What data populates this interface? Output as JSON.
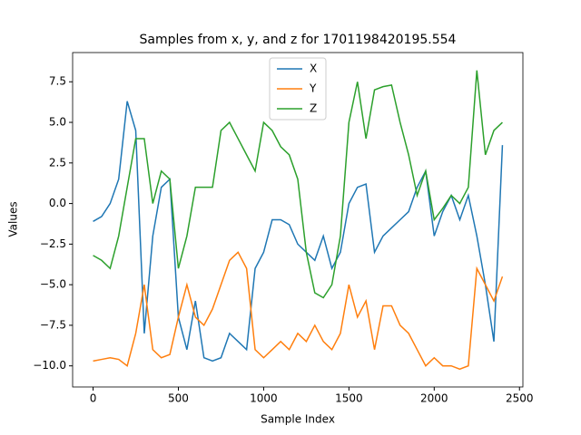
{
  "chart_data": {
    "type": "line",
    "title": "Samples from x, y, and z for 1701198420195.554",
    "x_label": "Sample Index",
    "y_label": "Values",
    "x": [
      0,
      50,
      100,
      150,
      200,
      250,
      300,
      350,
      400,
      450,
      500,
      550,
      600,
      650,
      700,
      750,
      800,
      850,
      900,
      950,
      1000,
      1050,
      1100,
      1150,
      1200,
      1250,
      1300,
      1350,
      1400,
      1450,
      1500,
      1550,
      1600,
      1650,
      1700,
      1750,
      1800,
      1850,
      1900,
      1950,
      2000,
      2050,
      2100,
      2150,
      2200,
      2250,
      2300,
      2350,
      2400
    ],
    "series": [
      {
        "name": "X",
        "color": "#1f77b4",
        "values": [
          -1.1,
          -0.8,
          0,
          1.5,
          6.3,
          4.5,
          -8,
          -2,
          1,
          1.5,
          -7,
          -9,
          -6,
          -9.5,
          -9.7,
          -9.5,
          -8,
          -8.5,
          -9,
          -4,
          -3,
          -1,
          -1,
          -1.3,
          -2.5,
          -3,
          -3.5,
          -2,
          -4,
          -3,
          0,
          1,
          1.2,
          -3,
          -2,
          -1.5,
          -1,
          -0.5,
          1,
          2,
          -2,
          -0.5,
          0.5,
          -1,
          0.5,
          -2,
          -5,
          -8.5,
          3.6
        ]
      },
      {
        "name": "Y",
        "color": "#ff7f0e",
        "values": [
          -9.7,
          -9.6,
          -9.5,
          -9.6,
          -10,
          -8,
          -5,
          -9,
          -9.5,
          -9.3,
          -7,
          -5,
          -7,
          -7.5,
          -6.5,
          -5,
          -3.5,
          -3,
          -4,
          -9,
          -9.5,
          -9,
          -8.5,
          -9,
          -8,
          -8.5,
          -7.5,
          -8.5,
          -9,
          -8,
          -5,
          -7,
          -6,
          -9,
          -6.3,
          -6.3,
          -7.5,
          -8,
          -9,
          -10,
          -9.5,
          -10,
          -10,
          -10.2,
          -10,
          -4,
          -5,
          -6,
          -4.5
        ]
      },
      {
        "name": "Z",
        "color": "#2ca02c",
        "values": [
          -3.2,
          -3.5,
          -4,
          -2,
          1,
          4,
          4,
          0,
          2,
          1.5,
          -4,
          -2,
          1,
          1,
          1,
          4.5,
          5,
          4,
          3,
          2,
          5,
          4.5,
          3.5,
          3,
          1.5,
          -3,
          -5.5,
          -5.8,
          -5,
          -2,
          5,
          7.5,
          4,
          7,
          7.2,
          7.3,
          5,
          3,
          0.5,
          2,
          -1,
          -0.3,
          0.5,
          0,
          1,
          8.2,
          3,
          4.5,
          5
        ]
      }
    ],
    "xlim": [
      -120,
      2520
    ],
    "ylim": [
      -11.3,
      9.3
    ],
    "xticks": [
      0,
      500,
      1000,
      1500,
      2000,
      2500
    ],
    "yticks": [
      {
        "value": -10,
        "label": "−10.0"
      },
      {
        "value": -7.5,
        "label": "−7.5"
      },
      {
        "value": -5,
        "label": "−5.0"
      },
      {
        "value": -2.5,
        "label": "−2.5"
      },
      {
        "value": 0,
        "label": "0.0"
      },
      2.5,
      {
        "value": 5,
        "label": "5.0"
      },
      7.5
    ],
    "legend": "upper center"
  }
}
